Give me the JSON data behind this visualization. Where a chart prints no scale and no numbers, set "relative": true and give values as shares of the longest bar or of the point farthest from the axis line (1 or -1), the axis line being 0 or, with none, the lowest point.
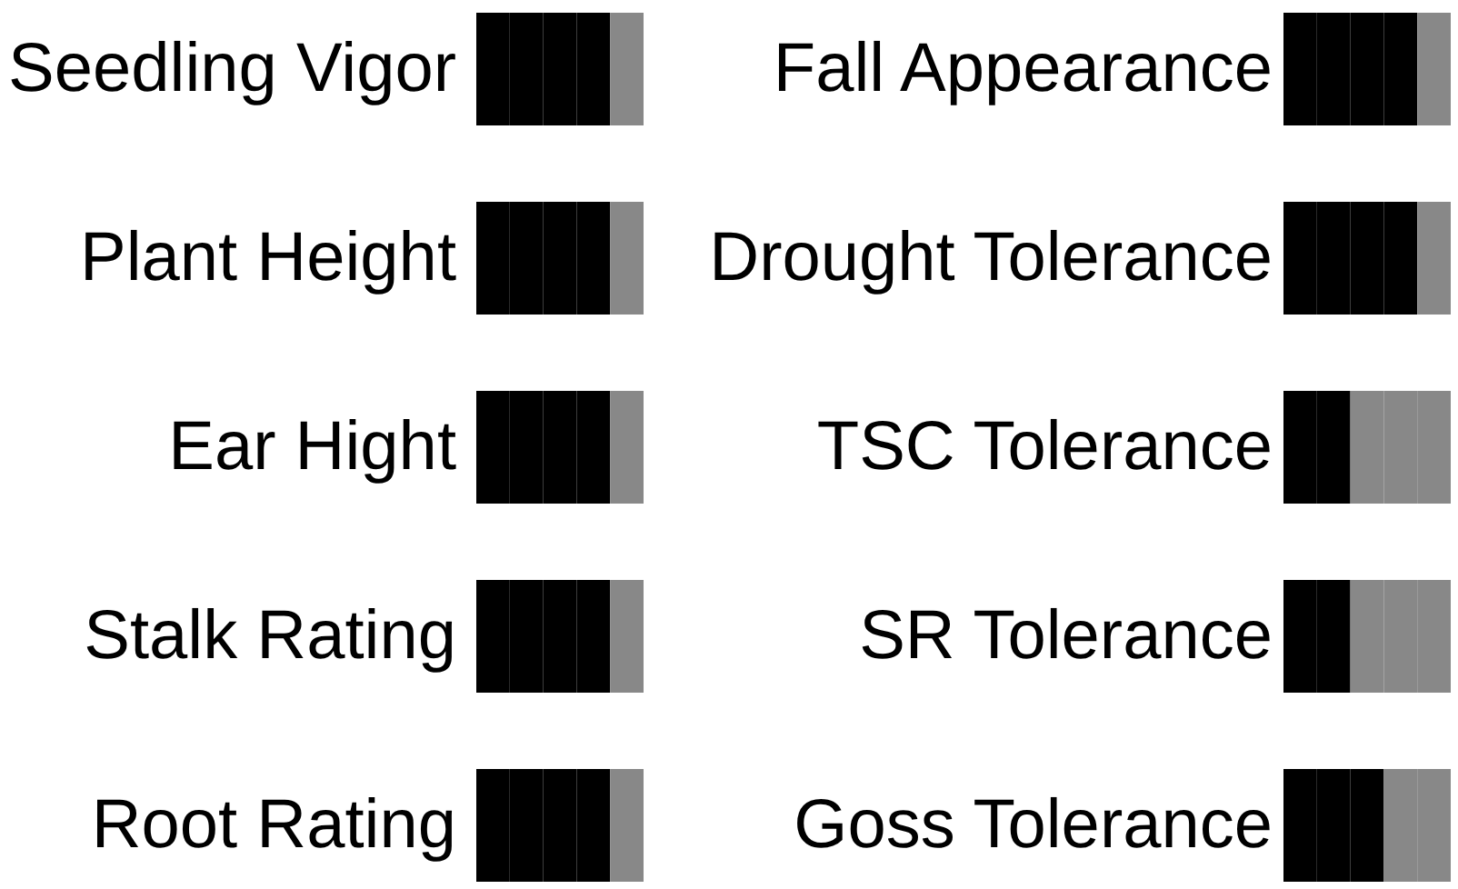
{
  "chart_data": [
    {
      "type": "bar",
      "orientation": "horizontal",
      "stacked": true,
      "relative": true,
      "tick_labels": "y",
      "categories": [
        "Seedling Vigor",
        "Plant Height",
        "Ear Hight",
        "Stalk Rating",
        "Root Rating"
      ],
      "series": [
        {
          "values": [
            0.2,
            0.2,
            0.2,
            0.2,
            0.2
          ],
          "colors": [
            "#000000",
            "#000000",
            "#000000",
            "#000000",
            "#000000"
          ]
        },
        {
          "values": [
            0.2,
            0.2,
            0.2,
            0.2,
            0.2
          ],
          "colors": [
            "#000000",
            "#000000",
            "#000000",
            "#000000",
            "#000000"
          ]
        },
        {
          "values": [
            0.2,
            0.2,
            0.2,
            0.2,
            0.2
          ],
          "colors": [
            "#000000",
            "#000000",
            "#000000",
            "#000000",
            "#000000"
          ]
        },
        {
          "values": [
            0.2,
            0.2,
            0.2,
            0.2,
            0.2
          ],
          "colors": [
            "#000000",
            "#000000",
            "#000000",
            "#000000",
            "#000000"
          ]
        },
        {
          "values": [
            0.2,
            0.2,
            0.2,
            0.2,
            0.2
          ],
          "colors": [
            "#888888",
            "#888888",
            "#888888",
            "#888888",
            "#888888"
          ]
        }
      ]
    },
    {
      "type": "bar",
      "orientation": "horizontal",
      "stacked": true,
      "relative": true,
      "tick_labels": "y",
      "categories": [
        "Fall Appearance",
        "Drought Tolerance",
        "TSC Tolerance",
        "SR Tolerance",
        "Goss Tolerance"
      ],
      "series": [
        {
          "values": [
            0.2,
            0.2,
            0.2,
            0.2,
            0.2
          ],
          "colors": [
            "#000000",
            "#000000",
            "#000000",
            "#000000",
            "#000000"
          ]
        },
        {
          "values": [
            0.2,
            0.2,
            0.2,
            0.2,
            0.2
          ],
          "colors": [
            "#000000",
            "#000000",
            "#000000",
            "#000000",
            "#000000"
          ]
        },
        {
          "values": [
            0.2,
            0.2,
            0.2,
            0.2,
            0.2
          ],
          "colors": [
            "#000000",
            "#000000",
            "#888888",
            "#888888",
            "#000000"
          ]
        },
        {
          "values": [
            0.2,
            0.2,
            0.2,
            0.2,
            0.2
          ],
          "colors": [
            "#000000",
            "#000000",
            "#888888",
            "#888888",
            "#888888"
          ]
        },
        {
          "values": [
            0.2,
            0.2,
            0.2,
            0.2,
            0.2
          ],
          "colors": [
            "#888888",
            "#888888",
            "#888888",
            "#888888",
            "#888888"
          ]
        }
      ]
    }
  ]
}
